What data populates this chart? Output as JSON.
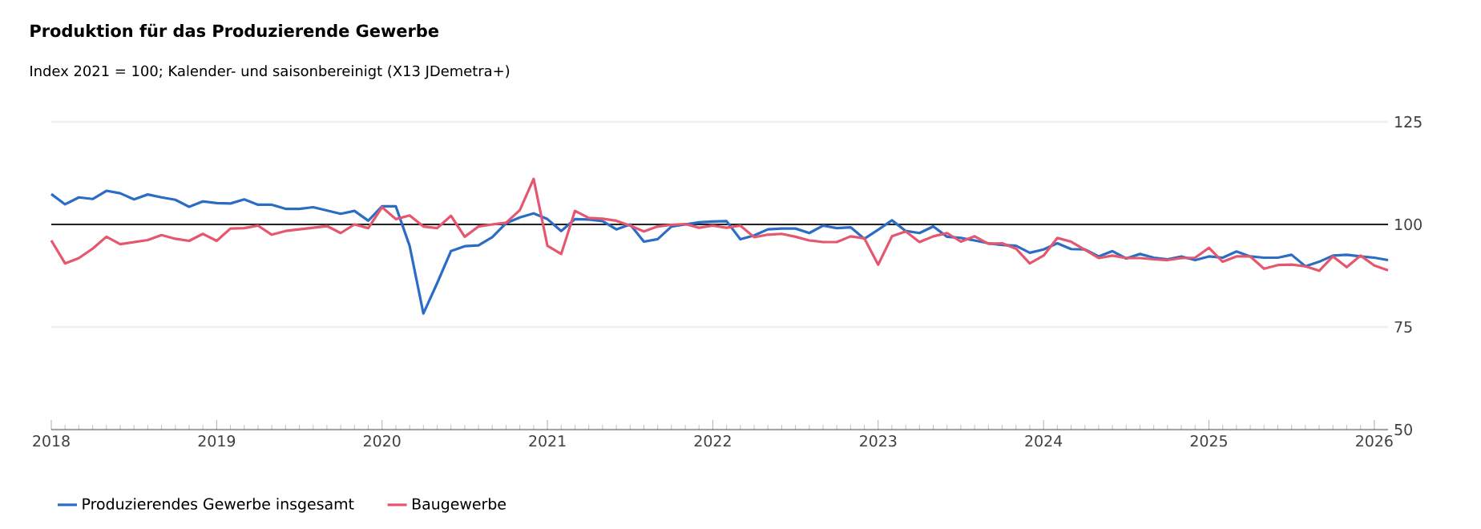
{
  "chart_data": {
    "type": "line",
    "title": "Produktion für das Produzierende Gewerbe",
    "subtitle": "Index 2021 = 100; Kalender- und saisonbereinigt (X13 JDemetra+)",
    "x": [
      "2018-01",
      "2018-02",
      "2018-03",
      "2018-04",
      "2018-05",
      "2018-06",
      "2018-07",
      "2018-08",
      "2018-09",
      "2018-10",
      "2018-11",
      "2018-12",
      "2019-01",
      "2019-02",
      "2019-03",
      "2019-04",
      "2019-05",
      "2019-06",
      "2019-07",
      "2019-08",
      "2019-09",
      "2019-10",
      "2019-11",
      "2019-12",
      "2020-01",
      "2020-02",
      "2020-03",
      "2020-04",
      "2020-05",
      "2020-06",
      "2020-07",
      "2020-08",
      "2020-09",
      "2020-10",
      "2020-11",
      "2020-12",
      "2021-01",
      "2021-02",
      "2021-03",
      "2021-04",
      "2021-05",
      "2021-06",
      "2021-07",
      "2021-08",
      "2021-09",
      "2021-10",
      "2021-11",
      "2021-12",
      "2022-01",
      "2022-02",
      "2022-03",
      "2022-04",
      "2022-05",
      "2022-06",
      "2022-07",
      "2022-08",
      "2022-09",
      "2022-10",
      "2022-11",
      "2022-12",
      "2023-01",
      "2023-02",
      "2023-03",
      "2023-04",
      "2023-05",
      "2023-06",
      "2023-07",
      "2023-08",
      "2023-09",
      "2023-10",
      "2023-11",
      "2023-12",
      "2024-01",
      "2024-02",
      "2024-03",
      "2024-04",
      "2024-05",
      "2024-06",
      "2024-07",
      "2024-08",
      "2024-09",
      "2024-10",
      "2024-11",
      "2024-12",
      "2025-01",
      "2025-02",
      "2025-03",
      "2025-04",
      "2025-05",
      "2025-06",
      "2025-07",
      "2025-08",
      "2025-09",
      "2025-10",
      "2025-11",
      "2025-12",
      "2026-01",
      "2026-02"
    ],
    "series": [
      {
        "name": "Produzierendes Gewerbe insgesamt",
        "color": "#2b6cc4",
        "values": [
          107.4,
          104.9,
          106.6,
          106.2,
          108.2,
          107.6,
          106.1,
          107.3,
          106.6,
          106,
          104.3,
          105.6,
          105.2,
          105.1,
          106.1,
          104.8,
          104.8,
          103.8,
          103.8,
          104.2,
          103.4,
          102.6,
          103.3,
          100.9,
          104.4,
          104.4,
          94.8,
          78.3,
          85.7,
          93.5,
          94.7,
          94.9,
          96.9,
          100.3,
          101.7,
          102.7,
          101.3,
          98.4,
          101.3,
          101.2,
          100.8,
          98.8,
          100,
          95.8,
          96.4,
          99.5,
          100,
          100.5,
          100.7,
          100.8,
          96.4,
          97.3,
          98.8,
          99,
          99,
          97.9,
          99.7,
          99.1,
          99.3,
          96.5,
          98.7,
          101,
          98.4,
          97.9,
          99.5,
          97,
          96.7,
          96.1,
          95.4,
          95,
          94.8,
          93.1,
          93.9,
          95.4,
          94,
          93.9,
          92.2,
          93.5,
          91.7,
          92.8,
          91.9,
          91.5,
          92.2,
          91.3,
          92.2,
          91.9,
          93.4,
          92.2,
          91.9,
          91.9,
          92.6,
          89.8,
          90.9,
          92.4,
          92.6,
          92.2,
          91.9,
          91.3
        ]
      },
      {
        "name": "Baugewerbe",
        "color": "#e5566f",
        "values": [
          96.1,
          90.5,
          91.8,
          94.1,
          97,
          95.2,
          95.7,
          96.2,
          97.4,
          96.5,
          96,
          97.7,
          96,
          99,
          99.1,
          99.7,
          97.5,
          98.4,
          98.8,
          99.2,
          99.6,
          97.9,
          100,
          99.1,
          104.2,
          101.3,
          102.2,
          99.5,
          99.1,
          102.1,
          97,
          99.5,
          100,
          100.4,
          103.5,
          111.1,
          94.8,
          92.8,
          103.3,
          101.6,
          101.4,
          100.9,
          99.7,
          98.3,
          99.5,
          99.9,
          100.1,
          99.2,
          99.7,
          99.2,
          99.7,
          96.9,
          97.5,
          97.7,
          97,
          96.1,
          95.7,
          95.7,
          97.1,
          96.6,
          90.2,
          97.1,
          98.3,
          95.7,
          97.1,
          97.9,
          95.8,
          97.1,
          95.3,
          95.4,
          94.1,
          90.5,
          92.4,
          96.7,
          95.8,
          93.8,
          91.8,
          92.4,
          91.8,
          91.8,
          91.5,
          91.3,
          91.8,
          91.9,
          94.3,
          90.9,
          92.2,
          92.2,
          89.2,
          90.1,
          90.2,
          89.8,
          88.7,
          92.2,
          89.6,
          92.4,
          90,
          88.8
        ]
      }
    ],
    "xlim": [
      "2018-01",
      "2026-02"
    ],
    "xticks": [
      "2018",
      "2019",
      "2020",
      "2021",
      "2022",
      "2023",
      "2024",
      "2025",
      "2026"
    ],
    "ylim": [
      50,
      125
    ],
    "yticks": [
      50,
      75,
      100,
      125
    ],
    "ref_lines": [
      {
        "axis": "y",
        "value": 100,
        "color": "#222222"
      }
    ],
    "grid": "y",
    "legend": "bottom",
    "marker": "none",
    "line_style": "solid"
  }
}
